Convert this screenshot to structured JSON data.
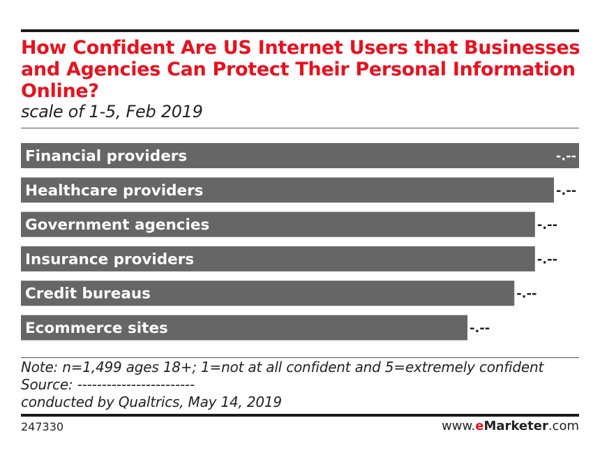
{
  "chart_data": {
    "type": "bar",
    "orientation": "horizontal",
    "title": "How Confident Are US Internet Users that Businesses and Agencies Can Protect Their Personal Information Online?",
    "subtitle": "scale of 1-5, Feb 2019",
    "categories": [
      "Financial providers",
      "Healthcare providers",
      "Government agencies",
      "Insurance providers",
      "Credit bureaus",
      "Ecommerce sites"
    ],
    "values": [
      1.0,
      0.955,
      0.921,
      0.921,
      0.884,
      0.8
    ],
    "value_scale": "relative to largest bar (numeric values hidden)",
    "value_labels": [
      "-.--",
      "-.--",
      "-.--",
      "-.--",
      "-.--",
      "-.--"
    ],
    "xlim": [
      0,
      1
    ],
    "grid": false,
    "legend": "none",
    "bar_color": "#666666"
  },
  "notes": {
    "line1": "Note: n=1,499 ages 18+; 1=not at all confident and 5=extremely confident",
    "line2": "Source: ------------------------",
    "line3": "conducted by Qualtrics, May 14, 2019"
  },
  "footer": {
    "chart_id": "247330",
    "brand_prefix": "www.",
    "brand_e": "e",
    "brand_name": "Marketer",
    "brand_suffix": ".com"
  },
  "colors": {
    "title": "#e8121f",
    "bar": "#666666",
    "text": "#222222"
  }
}
